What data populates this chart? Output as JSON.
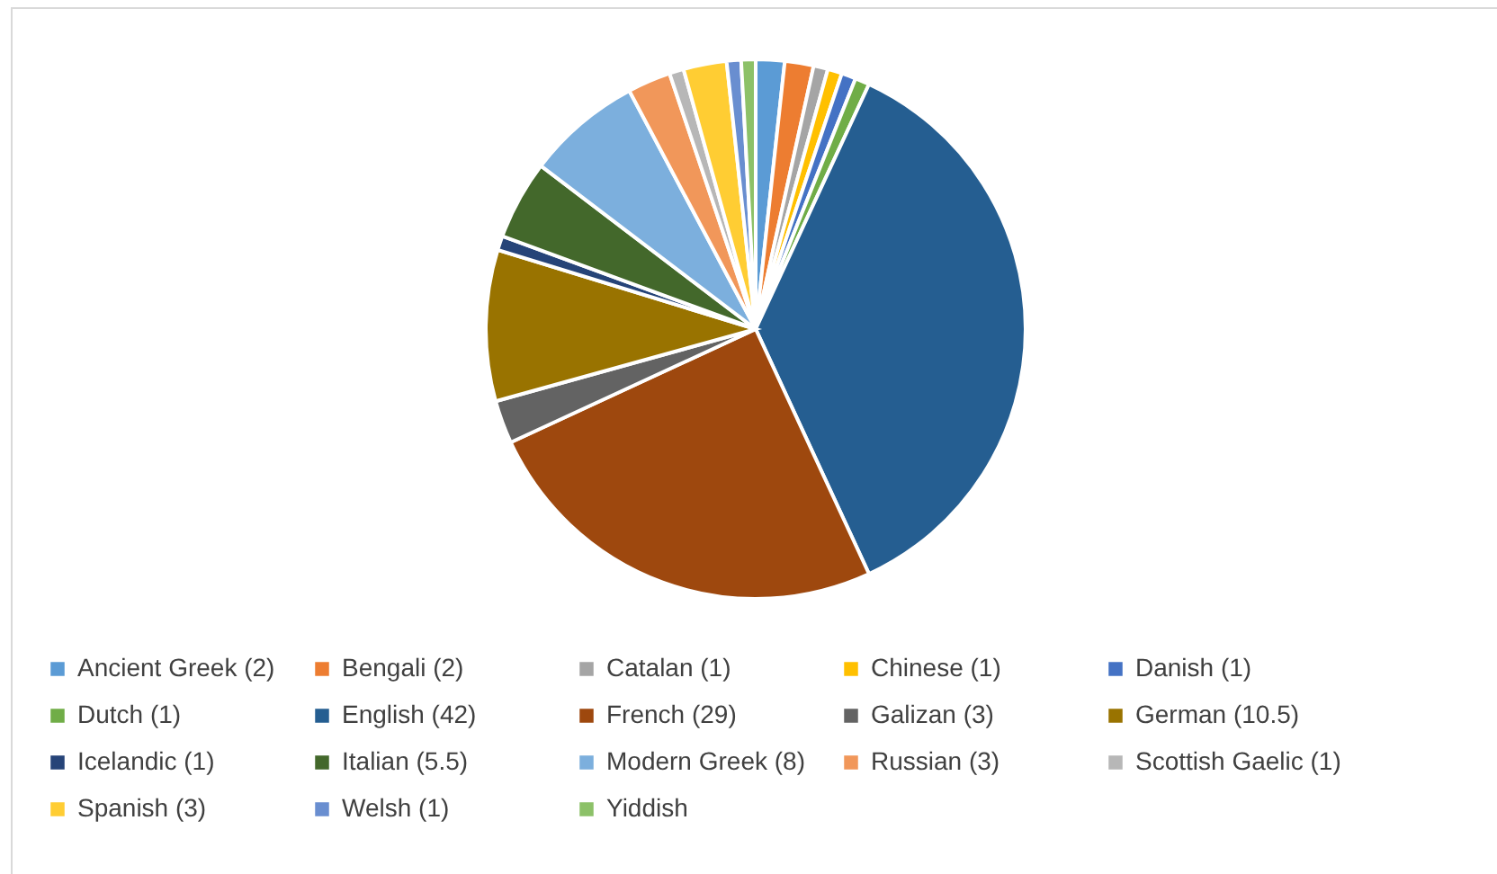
{
  "chart_data": {
    "type": "pie",
    "legend": "bottom",
    "categories": [
      "Ancient Greek (2)",
      "Bengali (2)",
      "Catalan (1)",
      "Chinese (1)",
      "Danish (1)",
      "Dutch (1)",
      "English (42)",
      "French (29)",
      "Galizan (3)",
      "German (10.5)",
      "Icelandic (1)",
      "Italian (5.5)",
      "Modern Greek (8)",
      "Russian (3)",
      "Scottish Gaelic (1)",
      "Spanish (3)",
      "Welsh (1)",
      "Yiddish"
    ],
    "values": [
      2,
      2,
      1,
      1,
      1,
      1,
      42,
      29,
      3,
      10.5,
      1,
      5.5,
      8,
      3,
      1,
      3,
      1,
      1
    ],
    "colors": [
      "#5b9bd5",
      "#ed7d31",
      "#a5a5a5",
      "#ffc000",
      "#4472c4",
      "#70ad47",
      "#255e91",
      "#9e480e",
      "#636363",
      "#997300",
      "#264478",
      "#43682b",
      "#7cafdd",
      "#f1975a",
      "#b7b7b7",
      "#ffcd33",
      "#698ed0",
      "#8cc168"
    ]
  }
}
